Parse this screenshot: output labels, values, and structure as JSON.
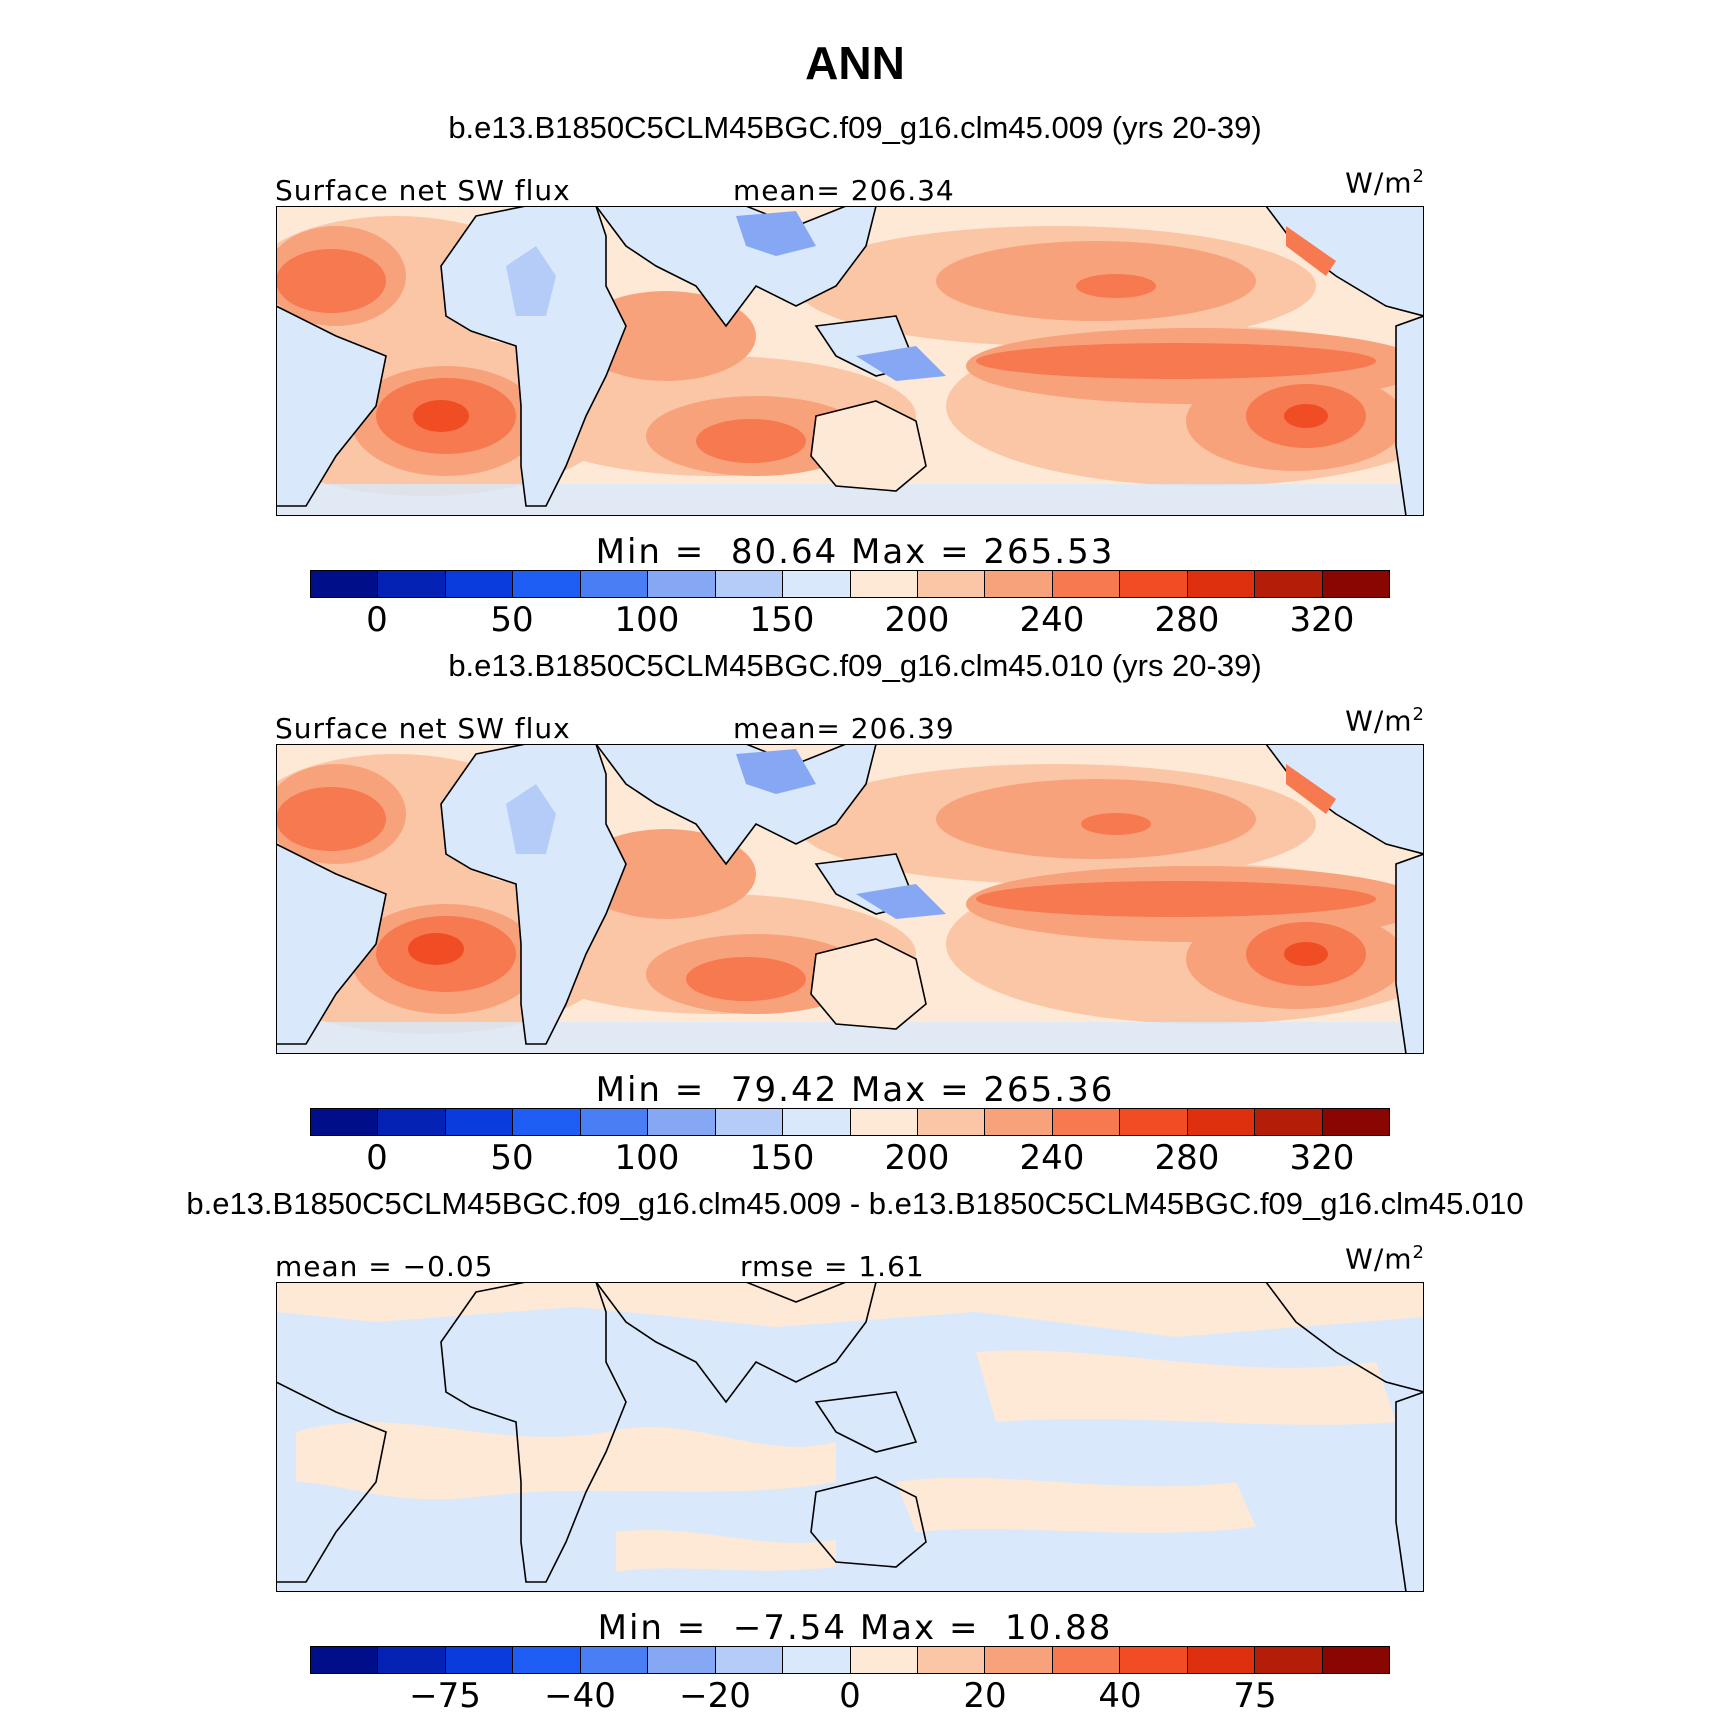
{
  "figure_title": "ANN",
  "colors": {
    "blue_reds_scale": [
      "#000e8a",
      "#0423b4",
      "#0a3bdc",
      "#1e5ef4",
      "#4a7ef4",
      "#86a8f4",
      "#b6ccf8",
      "#dae8fb",
      "#fde9d6",
      "#fbc6a6",
      "#f8a27b",
      "#f6794f",
      "#f14d24",
      "#de300f",
      "#b41e08",
      "#8a0602"
    ],
    "land_outline": "#000000"
  },
  "panels": [
    {
      "run_title": "b.e13.B1850C5CLM45BGC.f09_g16.clm45.009 (yrs 20-39)",
      "left_label": "Surface net SW flux",
      "center_label": "mean= 206.34",
      "units": "W/m",
      "units_exp": "2",
      "min_max": "Min =  80.64 Max = 265.53",
      "colorbar_ticks": [
        "0",
        "50",
        "100",
        "150",
        "200",
        "240",
        "280",
        "320"
      ],
      "map_stats": {
        "min": 80.64,
        "max": 265.53,
        "mean": 206.34
      }
    },
    {
      "run_title": "b.e13.B1850C5CLM45BGC.f09_g16.clm45.010 (yrs 20-39)",
      "left_label": "Surface net SW flux",
      "center_label": "mean= 206.39",
      "units": "W/m",
      "units_exp": "2",
      "min_max": "Min =  79.42 Max = 265.36",
      "colorbar_ticks": [
        "0",
        "50",
        "100",
        "150",
        "200",
        "240",
        "280",
        "320"
      ],
      "map_stats": {
        "min": 79.42,
        "max": 265.36,
        "mean": 206.39
      }
    },
    {
      "run_title": "b.e13.B1850C5CLM45BGC.f09_g16.clm45.009 - b.e13.B1850C5CLM45BGC.f09_g16.clm45.010",
      "left_label": "mean =  −0.05",
      "center_label": "rmse =   1.61",
      "units": "W/m",
      "units_exp": "2",
      "min_max": "Min =  −7.54 Max =  10.88",
      "colorbar_ticks": [
        "−75",
        "−40",
        "−20",
        "0",
        "20",
        "40",
        "75"
      ],
      "map_stats": {
        "min": -7.54,
        "max": 10.88,
        "mean": -0.05,
        "rmse": 1.61
      }
    }
  ]
}
